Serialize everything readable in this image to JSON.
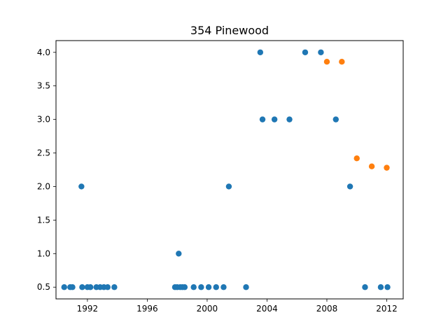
{
  "chart_data": {
    "type": "scatter",
    "title": "354 Pinewood",
    "xlabel": "",
    "ylabel": "",
    "xlim": [
      1989.9,
      2013.1
    ],
    "ylim": [
      0.325,
      4.175
    ],
    "xticks": [
      1992,
      1996,
      2000,
      2004,
      2008,
      2012
    ],
    "xtick_labels": [
      "1992",
      "1996",
      "2000",
      "2004",
      "2008",
      "2012"
    ],
    "yticks": [
      0.5,
      1.0,
      1.5,
      2.0,
      2.5,
      3.0,
      3.5,
      4.0
    ],
    "ytick_labels": [
      "0.5",
      "1.0",
      "1.5",
      "2.0",
      "2.5",
      "3.0",
      "3.5",
      "4.0"
    ],
    "grid": false,
    "series": [
      {
        "color": "#1f77b4",
        "points": [
          [
            1990.45,
            0.5
          ],
          [
            1990.85,
            0.5
          ],
          [
            1991.0,
            0.5
          ],
          [
            1991.6,
            2.0
          ],
          [
            1991.65,
            0.5
          ],
          [
            1992.0,
            0.5
          ],
          [
            1992.2,
            0.5
          ],
          [
            1992.6,
            0.5
          ],
          [
            1992.85,
            0.5
          ],
          [
            1993.1,
            0.5
          ],
          [
            1993.35,
            0.5
          ],
          [
            1993.8,
            0.5
          ],
          [
            1997.85,
            0.5
          ],
          [
            1998.0,
            0.5
          ],
          [
            1998.1,
            1.0
          ],
          [
            1998.2,
            0.5
          ],
          [
            1998.35,
            0.5
          ],
          [
            1998.5,
            0.5
          ],
          [
            1999.1,
            0.5
          ],
          [
            1999.6,
            0.5
          ],
          [
            2000.1,
            0.5
          ],
          [
            2000.6,
            0.5
          ],
          [
            2001.1,
            0.5
          ],
          [
            2001.45,
            2.0
          ],
          [
            2002.6,
            0.5
          ],
          [
            2003.55,
            4.0
          ],
          [
            2003.7,
            3.0
          ],
          [
            2004.5,
            3.0
          ],
          [
            2005.5,
            3.0
          ],
          [
            2006.55,
            4.0
          ],
          [
            2007.6,
            4.0
          ],
          [
            2008.6,
            3.0
          ],
          [
            2009.55,
            2.0
          ],
          [
            2010.55,
            0.5
          ],
          [
            2011.6,
            0.5
          ],
          [
            2012.05,
            0.5
          ]
        ]
      },
      {
        "color": "#ff7f0e",
        "points": [
          [
            2008.0,
            3.86
          ],
          [
            2009.0,
            3.86
          ],
          [
            2010.0,
            2.42
          ],
          [
            2011.0,
            2.3
          ],
          [
            2012.0,
            2.28
          ]
        ]
      }
    ]
  }
}
